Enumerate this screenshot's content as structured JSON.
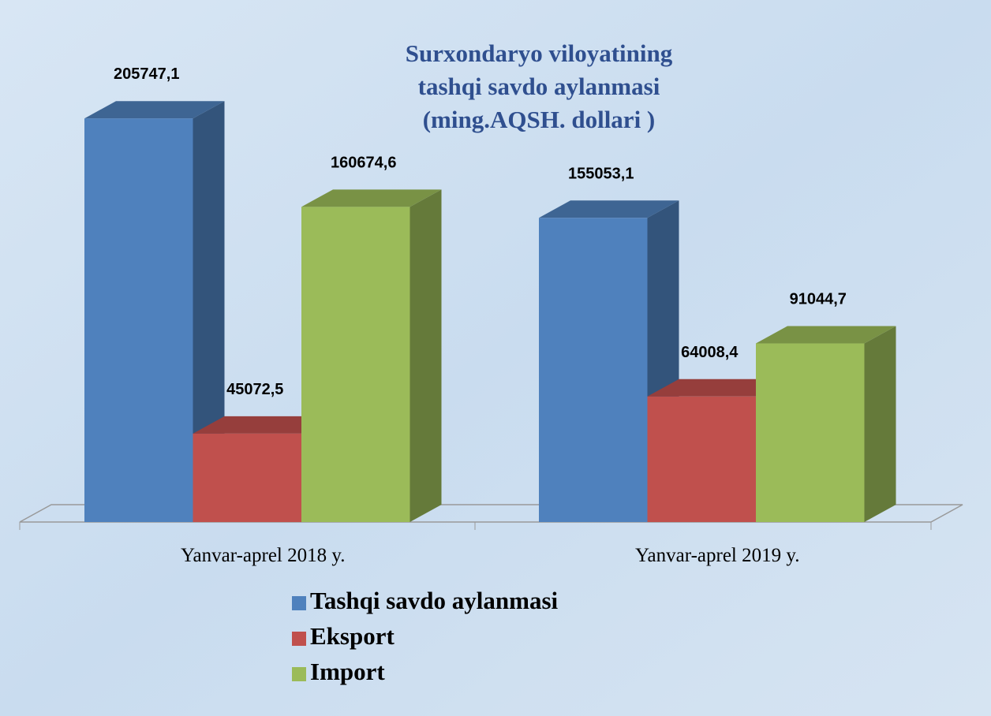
{
  "chart_data": {
    "type": "bar",
    "title": [
      "Surxondaryo viloyatining",
      "tashqi savdo aylanmasi",
      "(ming.AQSH. dollari )"
    ],
    "categories": [
      "Yanvar-aprel 2018 y.",
      "Yanvar-aprel 2019 y."
    ],
    "series": [
      {
        "name": "Tashqi savdo aylanmasi",
        "color": "#4f81bd",
        "values": [
          205747.1,
          155053.1
        ],
        "value_labels": [
          "205747,1",
          "155053,1"
        ]
      },
      {
        "name": "Eksport",
        "color": "#c0504d",
        "values": [
          45072.5,
          64008.4
        ],
        "value_labels": [
          "45072,5",
          "64008,4"
        ]
      },
      {
        "name": "Import",
        "color": "#9bbb59",
        "values": [
          160674.6,
          91044.7
        ],
        "value_labels": [
          "160674,6",
          "91044,7"
        ]
      }
    ],
    "ylim": [
      0,
      240000
    ]
  }
}
